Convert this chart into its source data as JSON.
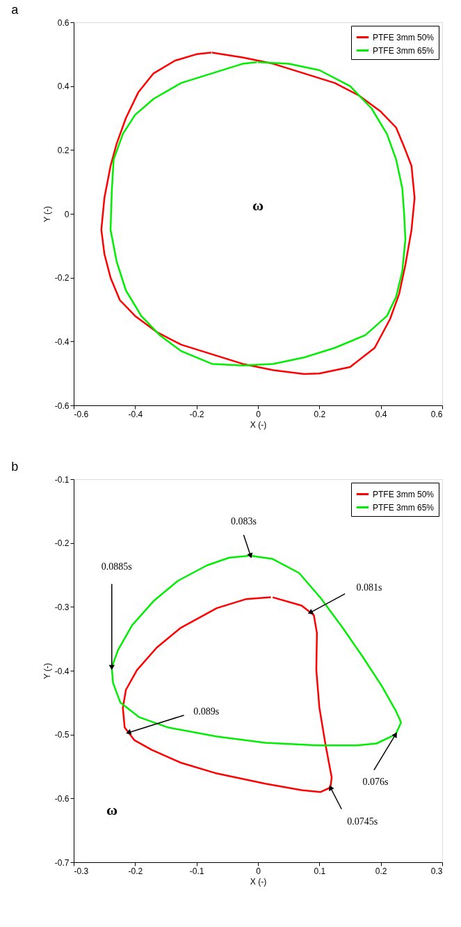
{
  "chart_data": [
    {
      "type": "line",
      "title": "a",
      "xlabel": "X (-)",
      "ylabel": "Y (-)",
      "xlim": [
        -0.6,
        0.6
      ],
      "ylim": [
        -0.6,
        0.6
      ],
      "xticks": [
        -0.6,
        -0.4,
        -0.2,
        0,
        0.2,
        0.4,
        0.6
      ],
      "yticks": [
        -0.6,
        -0.4,
        -0.2,
        0,
        0.2,
        0.4,
        0.6
      ],
      "grid": false,
      "legend": "top right",
      "marker": "none",
      "line_style": "solid",
      "annotations": [
        "ω"
      ],
      "series": [
        {
          "name": "PTFE 3mm 50%",
          "color": "#ff0000",
          "x": [
            -0.15,
            -0.05,
            0.05,
            0.15,
            0.25,
            0.33,
            0.4,
            0.45,
            0.48,
            0.5,
            0.51,
            0.5,
            0.48,
            0.46,
            0.43,
            0.38,
            0.3,
            0.2,
            0.15,
            0.05,
            -0.05,
            -0.15,
            -0.25,
            -0.33,
            -0.4,
            -0.45,
            -0.48,
            -0.5,
            -0.51,
            -0.5,
            -0.48,
            -0.46,
            -0.43,
            -0.39,
            -0.34,
            -0.27,
            -0.2,
            -0.152
          ],
          "values": [
            0.505,
            0.49,
            0.47,
            0.44,
            0.41,
            0.37,
            0.32,
            0.27,
            0.2,
            0.15,
            0.05,
            -0.05,
            -0.16,
            -0.25,
            -0.33,
            -0.42,
            -0.48,
            -0.5,
            -0.502,
            -0.49,
            -0.47,
            -0.44,
            -0.41,
            -0.37,
            -0.32,
            -0.27,
            -0.2,
            -0.126,
            -0.05,
            0.05,
            0.15,
            0.22,
            0.3,
            0.38,
            0.44,
            0.48,
            0.5,
            0.505
          ]
        },
        {
          "name": "PTFE 3mm 65%",
          "color": "#00ee00",
          "x": [
            0,
            0.1,
            0.2,
            0.3,
            0.37,
            0.42,
            0.45,
            0.47,
            0.476,
            0.48,
            0.47,
            0.45,
            0.42,
            0.35,
            0.25,
            0.15,
            0.05,
            -0.05,
            -0.15,
            -0.25,
            -0.32,
            -0.38,
            -0.43,
            -0.46,
            -0.48,
            -0.476,
            -0.47,
            -0.44,
            -0.4,
            -0.34,
            -0.25,
            -0.15,
            -0.05,
            -0.003
          ],
          "values": [
            0.475,
            0.47,
            0.45,
            0.4,
            0.33,
            0.25,
            0.17,
            0.08,
            0.0,
            -0.08,
            -0.18,
            -0.26,
            -0.32,
            -0.38,
            -0.42,
            -0.45,
            -0.47,
            -0.475,
            -0.47,
            -0.43,
            -0.38,
            -0.32,
            -0.24,
            -0.15,
            -0.05,
            0.07,
            0.17,
            0.25,
            0.31,
            0.36,
            0.41,
            0.44,
            0.47,
            0.475
          ]
        }
      ]
    },
    {
      "type": "line",
      "title": "b",
      "xlabel": "X (-)",
      "ylabel": "Y (-)",
      "xlim": [
        -0.3,
        0.3
      ],
      "ylim": [
        -0.7,
        -0.1
      ],
      "xticks": [
        -0.3,
        -0.2,
        -0.1,
        0,
        0.1,
        0.2,
        0.3
      ],
      "yticks": [
        -0.7,
        -0.6,
        -0.5,
        -0.4,
        -0.3,
        -0.2,
        -0.1
      ],
      "grid": false,
      "legend": "top right",
      "marker": "none",
      "line_style": "solid",
      "annotations": [
        {
          "text": "0.083s",
          "x": -0.012,
          "y": -0.22
        },
        {
          "text": "0.0885s",
          "x": -0.238,
          "y": -0.395
        },
        {
          "text": "0.081s",
          "x": 0.085,
          "y": -0.309
        },
        {
          "text": "0.089s",
          "x": -0.211,
          "y": -0.497
        },
        {
          "text": "0.076s",
          "x": 0.224,
          "y": -0.5
        },
        {
          "text": "0.0745s",
          "x": 0.118,
          "y": -0.583
        },
        "ω"
      ],
      "series": [
        {
          "name": "PTFE 3mm 50%",
          "color": "#ff0000",
          "x": [
            0.024,
            0.071,
            0.091,
            0.096,
            0.095,
            0.1,
            0.11,
            0.12,
            0.118,
            0.102,
            0.071,
            0.012,
            -0.067,
            -0.126,
            -0.173,
            -0.201,
            -0.217,
            -0.22,
            -0.215,
            -0.197,
            -0.165,
            -0.126,
            -0.067,
            -0.02,
            0.021
          ],
          "values": [
            -0.285,
            -0.298,
            -0.313,
            -0.341,
            -0.399,
            -0.458,
            -0.516,
            -0.567,
            -0.583,
            -0.59,
            -0.587,
            -0.577,
            -0.561,
            -0.544,
            -0.524,
            -0.509,
            -0.489,
            -0.458,
            -0.43,
            -0.399,
            -0.364,
            -0.333,
            -0.302,
            -0.288,
            -0.285
          ]
        },
        {
          "name": "PTFE 3mm 65%",
          "color": "#00ee00",
          "x": [
            -0.012,
            0.024,
            0.067,
            0.102,
            0.138,
            0.169,
            0.201,
            0.224,
            0.233,
            0.224,
            0.193,
            0.161,
            0.098,
            0.012,
            -0.067,
            -0.146,
            -0.193,
            -0.224,
            -0.236,
            -0.238,
            -0.228,
            -0.205,
            -0.169,
            -0.13,
            -0.083,
            -0.047,
            -0.015
          ],
          "values": [
            -0.22,
            -0.225,
            -0.247,
            -0.286,
            -0.333,
            -0.376,
            -0.423,
            -0.462,
            -0.481,
            -0.5,
            -0.514,
            -0.517,
            -0.517,
            -0.513,
            -0.503,
            -0.489,
            -0.473,
            -0.45,
            -0.419,
            -0.395,
            -0.368,
            -0.329,
            -0.29,
            -0.259,
            -0.235,
            -0.223,
            -0.22
          ]
        }
      ]
    }
  ]
}
